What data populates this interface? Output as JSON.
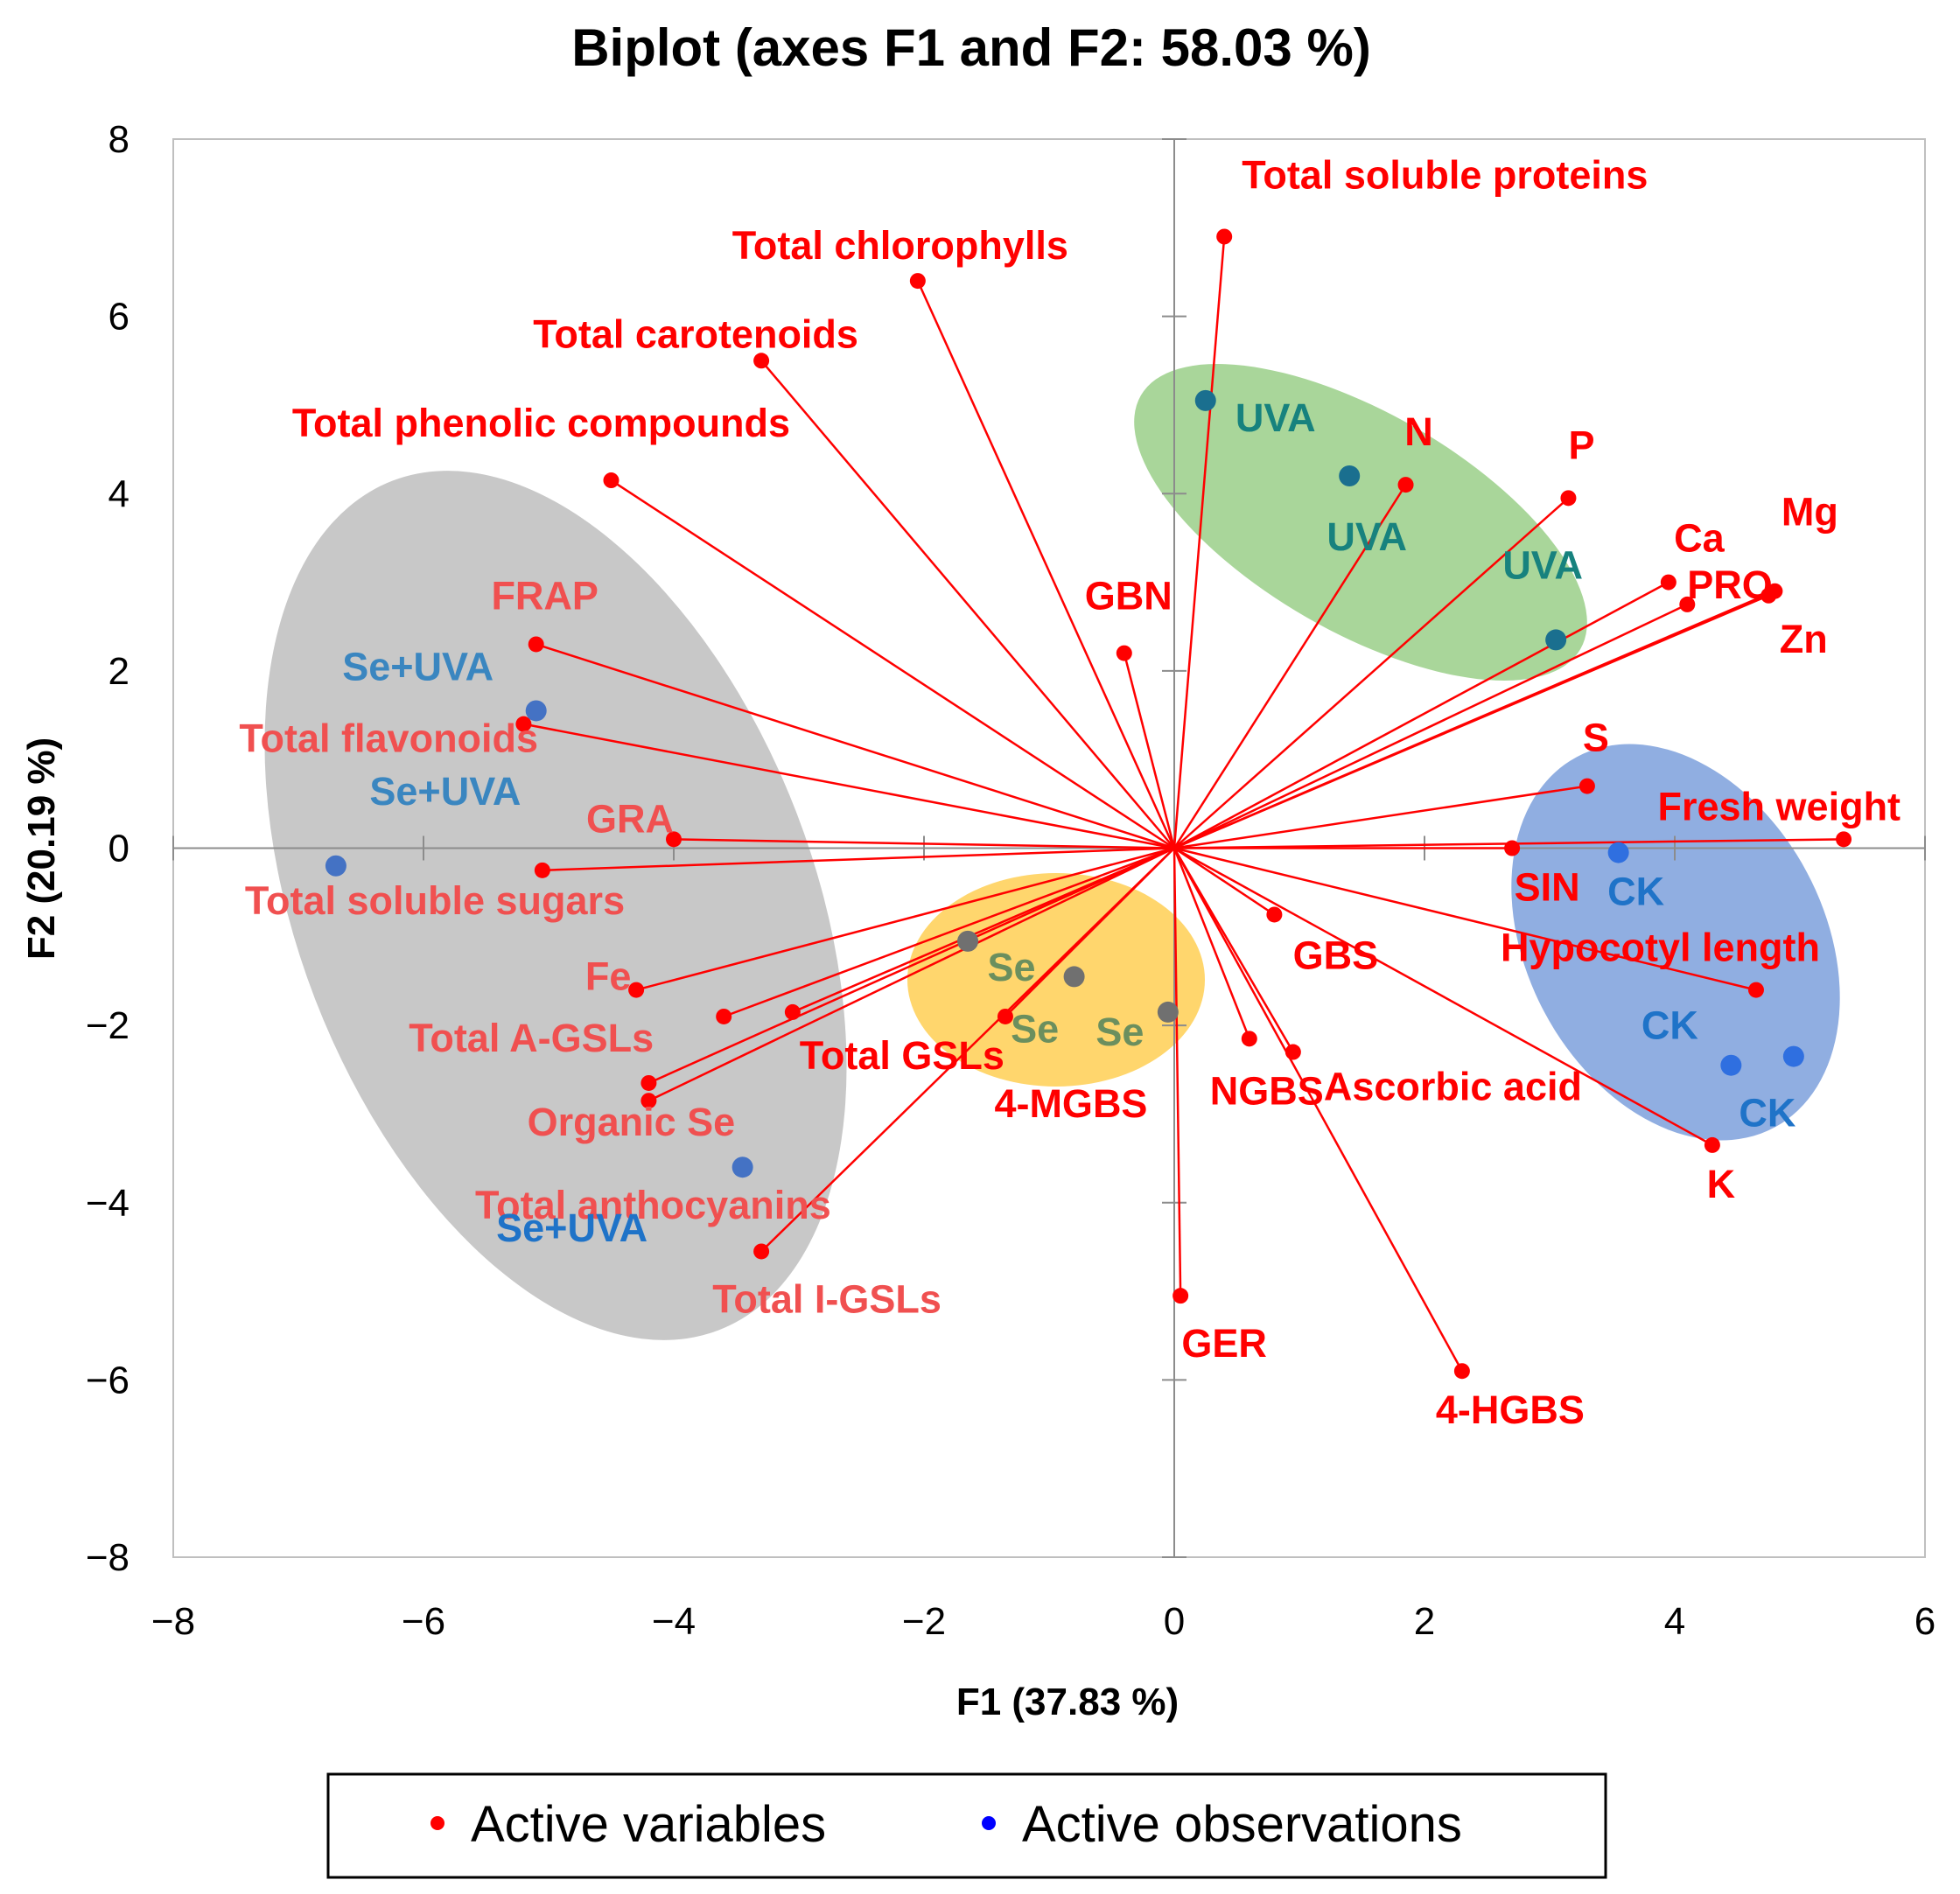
{
  "chart_data": {
    "type": "scatter",
    "title": "Biplot (axes F1 and F2: 58.03 %)",
    "xlabel": "F1 (37.83 %)",
    "ylabel": "F2 (20.19 %)",
    "xlim": [
      -8,
      6
    ],
    "ylim": [
      -8,
      8
    ],
    "xticks": [
      -8,
      -6,
      -4,
      -2,
      0,
      2,
      4,
      6
    ],
    "yticks": [
      -8,
      -6,
      -4,
      -2,
      0,
      2,
      4,
      6,
      8
    ],
    "xtick_labels": [
      "−8",
      "−6",
      "−4",
      "−2",
      "0",
      "2",
      "4",
      "6"
    ],
    "ytick_labels": [
      "−8",
      "−6",
      "−4",
      "−2",
      "0",
      "2",
      "4",
      "6",
      "8"
    ],
    "colors": {
      "variable": "#ff0000",
      "observation": "#1f4e9c",
      "gray_region": "#c8c8c8",
      "green_region": "#8cc878",
      "blue_region": "#7da0dc",
      "yellow_region": "#ffc83c"
    },
    "legend": {
      "position": "bottom",
      "entries": [
        {
          "label": "Active variables",
          "color": "#ff0000"
        },
        {
          "label": "Active observations",
          "color": "#0000ff"
        }
      ]
    },
    "variables": [
      {
        "name": "Total soluble proteins",
        "x": 0.4,
        "y": 6.9
      },
      {
        "name": "Total chlorophylls",
        "x": -2.05,
        "y": 6.4
      },
      {
        "name": "Total carotenoids",
        "x": -3.3,
        "y": 5.5
      },
      {
        "name": "Total phenolic compounds",
        "x": -4.5,
        "y": 4.15
      },
      {
        "name": "N",
        "x": 1.85,
        "y": 4.1
      },
      {
        "name": "P",
        "x": 3.15,
        "y": 3.95
      },
      {
        "name": "Ca",
        "x": 3.95,
        "y": 3.0
      },
      {
        "name": "Mg",
        "x": 4.8,
        "y": 2.9
      },
      {
        "name": "PRO",
        "x": 4.1,
        "y": 2.75
      },
      {
        "name": "Zn",
        "x": 4.75,
        "y": 2.85
      },
      {
        "name": "GBN",
        "x": -0.4,
        "y": 2.2
      },
      {
        "name": "FRAP",
        "x": -5.1,
        "y": 2.3
      },
      {
        "name": "Total flavonoids",
        "x": -5.2,
        "y": 1.4
      },
      {
        "name": "S",
        "x": 3.3,
        "y": 0.7
      },
      {
        "name": "Fresh weight",
        "x": 5.35,
        "y": 0.1
      },
      {
        "name": "GRA",
        "x": -4.0,
        "y": 0.1
      },
      {
        "name": "Total soluble sugars",
        "x": -5.05,
        "y": -0.25
      },
      {
        "name": "SIN",
        "x": 2.7,
        "y": 0.0
      },
      {
        "name": "GBS",
        "x": 0.8,
        "y": -0.75
      },
      {
        "name": "Hypocotyl length",
        "x": 4.65,
        "y": -1.6
      },
      {
        "name": "Fe",
        "x": -4.3,
        "y": -1.6
      },
      {
        "name": "Total A-GSLs",
        "x": -3.6,
        "y": -1.9
      },
      {
        "name": "Total GSLs",
        "x": -3.05,
        "y": -1.85
      },
      {
        "name": "4-MGBS",
        "x": -1.35,
        "y": -1.9
      },
      {
        "name": "NGBS",
        "x": 0.6,
        "y": -2.15
      },
      {
        "name": "Ascorbic acid",
        "x": 0.95,
        "y": -2.3
      },
      {
        "name": "Organic Se",
        "x": -4.2,
        "y": -2.65
      },
      {
        "name": "Total anthocyanins",
        "x": -4.2,
        "y": -2.85
      },
      {
        "name": "K",
        "x": 4.3,
        "y": -3.35
      },
      {
        "name": "Total I-GSLs",
        "x": -3.3,
        "y": -4.55
      },
      {
        "name": "GER",
        "x": 0.05,
        "y": -5.05
      },
      {
        "name": "4-HGBS",
        "x": 2.3,
        "y": -5.9
      }
    ],
    "observations": [
      {
        "name": "UVA",
        "x": 0.25,
        "y": 5.05,
        "group": "UVA"
      },
      {
        "name": "UVA",
        "x": 1.4,
        "y": 4.2,
        "group": "UVA"
      },
      {
        "name": "UVA",
        "x": 3.05,
        "y": 2.35,
        "group": "UVA"
      },
      {
        "name": "Se+UVA",
        "x": -5.1,
        "y": 1.55,
        "group": "Se+UVA"
      },
      {
        "name": "Se+UVA",
        "x": -6.7,
        "y": -0.2,
        "group": "Se+UVA"
      },
      {
        "name": "Se+UVA",
        "x": -3.45,
        "y": -3.6,
        "group": "Se+UVA"
      },
      {
        "name": "Se",
        "x": -1.65,
        "y": -1.05,
        "group": "Se"
      },
      {
        "name": "Se",
        "x": -0.8,
        "y": -1.45,
        "group": "Se"
      },
      {
        "name": "Se",
        "x": -0.05,
        "y": -1.85,
        "group": "Se"
      },
      {
        "name": "CK",
        "x": 3.55,
        "y": -0.05,
        "group": "CK"
      },
      {
        "name": "CK",
        "x": 4.45,
        "y": -2.45,
        "group": "CK"
      },
      {
        "name": "CK",
        "x": 4.95,
        "y": -2.35,
        "group": "CK"
      }
    ]
  }
}
